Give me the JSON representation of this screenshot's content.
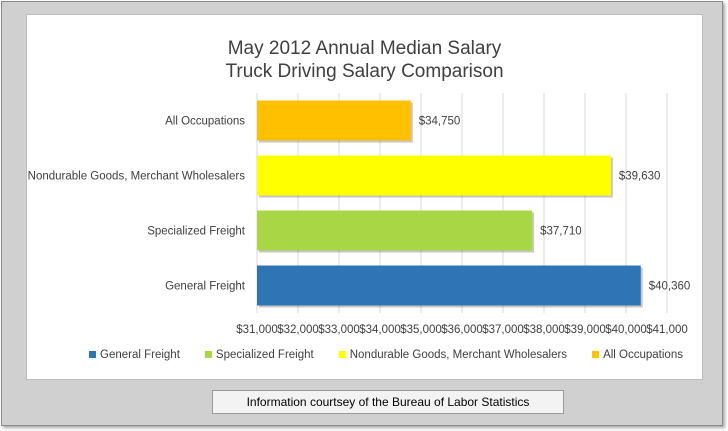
{
  "chart_data": {
    "type": "bar",
    "orientation": "horizontal",
    "title": "May 2012 Annual Median Salary",
    "subtitle": "Truck Driving Salary Comparison",
    "categories": [
      "All Occupations",
      "Nondurable Goods, Merchant Wholesalers",
      "Specialized Freight",
      "General Freight"
    ],
    "values": [
      34750,
      39630,
      37710,
      40360
    ],
    "data_labels": [
      "$34,750",
      "$39,630",
      "$37,710",
      "$40,360"
    ],
    "colors": [
      "#FFC000",
      "#FFFF00",
      "#A9D645",
      "#2E75B6"
    ],
    "xlim": [
      31000,
      41000
    ],
    "x_ticks": [
      "$31,000",
      "$32,000",
      "$33,000",
      "$34,000",
      "$35,000",
      "$36,000",
      "$37,000",
      "$38,000",
      "$39,000",
      "$40,000",
      "$41,000"
    ],
    "grid": true,
    "legend_position": "bottom",
    "legend": [
      {
        "label": "General Freight",
        "color": "#2E75B6"
      },
      {
        "label": "Specialized Freight",
        "color": "#A9D645"
      },
      {
        "label": "Nondurable Goods, Merchant Wholesalers",
        "color": "#FFFF00"
      },
      {
        "label": "All Occupations",
        "color": "#FFC000"
      }
    ]
  },
  "footer_note": "Information courtsey of the Bureau of Labor Statistics"
}
